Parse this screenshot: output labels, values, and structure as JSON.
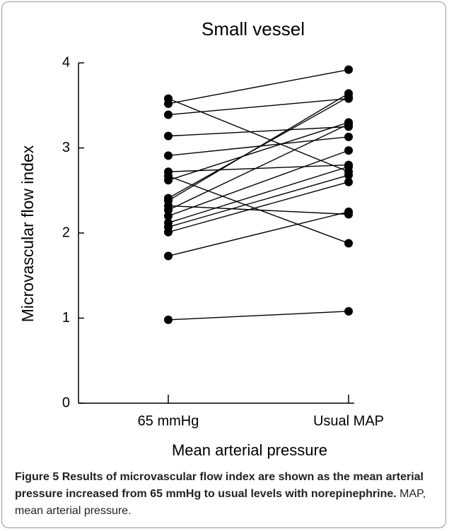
{
  "chart_data": {
    "type": "paired-line",
    "title": "Small vessel",
    "x_label": "Mean arterial pressure",
    "y_label": "Microvascular flow index",
    "categories": [
      "65 mmHg",
      "Usual MAP"
    ],
    "ylim": [
      0,
      4
    ],
    "yticks": [
      0,
      1,
      2,
      3,
      4
    ],
    "grid": false,
    "color": "#000000",
    "series": [
      {
        "values": [
          3.58,
          2.72
        ]
      },
      {
        "values": [
          3.52,
          3.92
        ]
      },
      {
        "values": [
          3.39,
          3.58
        ]
      },
      {
        "values": [
          3.14,
          3.25
        ]
      },
      {
        "values": [
          2.91,
          3.13
        ]
      },
      {
        "values": [
          2.72,
          2.8
        ]
      },
      {
        "values": [
          2.67,
          1.88
        ]
      },
      {
        "values": [
          2.62,
          3.3
        ]
      },
      {
        "values": [
          2.41,
          3.6
        ]
      },
      {
        "values": [
          2.38,
          3.64
        ]
      },
      {
        "values": [
          2.32,
          2.22
        ]
      },
      {
        "values": [
          2.27,
          3.28
        ]
      },
      {
        "values": [
          2.2,
          2.97
        ]
      },
      {
        "values": [
          2.12,
          2.78
        ]
      },
      {
        "values": [
          2.07,
          2.68
        ]
      },
      {
        "values": [
          2.01,
          2.6
        ]
      },
      {
        "values": [
          1.73,
          2.25
        ]
      },
      {
        "values": [
          0.98,
          1.08
        ]
      }
    ]
  },
  "caption": {
    "label": "Figure 5",
    "bold": "Results of microvascular flow index are shown as the mean arterial pressure increased from 65 mmHg to usual levels with norepinephrine.",
    "text": "MAP, mean arterial pressure."
  }
}
